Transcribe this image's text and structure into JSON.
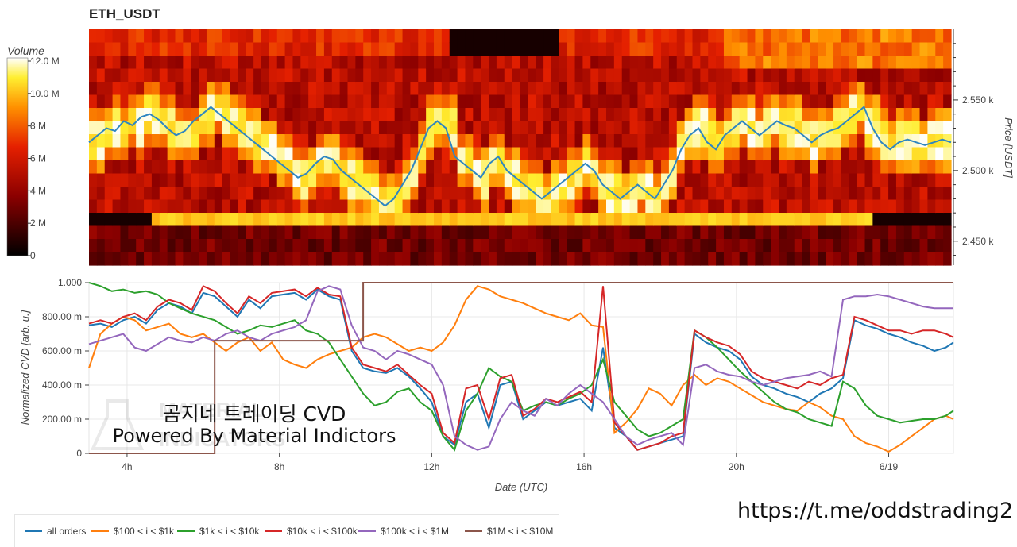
{
  "title": "ETH_USDT",
  "colorbar": {
    "label": "Volume",
    "ticks": [
      "0",
      "2 M",
      "4 M",
      "6 M",
      "8 M",
      "10.0 M",
      "12.0 M"
    ]
  },
  "heatmap": {
    "ylabel": "Price [USDT]",
    "yticks": [
      "2.450 k",
      "2.500 k",
      "2.550 k"
    ]
  },
  "overlay": {
    "line1": "곰지네 트레이딩 CVD",
    "line2": "Powered By Material Indictors"
  },
  "url": "https://t.me/oddstrading2",
  "colors": {
    "all_orders": "#1f77b4",
    "s100_1k": "#ff7f0e",
    "s1k_10k": "#2ca02c",
    "s10k_100k": "#d62728",
    "s100k_1m": "#9467bd",
    "s1m_10m": "#8c564b",
    "price_line": "#2e86c1"
  },
  "chart_data": [
    {
      "type": "heatmap",
      "title": "ETH_USDT",
      "ylabel": "Price [USDT]",
      "yticks": [
        "2.450 k",
        "2.500 k",
        "2.550 k"
      ],
      "colorbar_label": "Volume",
      "colorbar_range": [
        0,
        12000000
      ],
      "price_series": [
        2520,
        2525,
        2530,
        2528,
        2535,
        2532,
        2538,
        2540,
        2536,
        2530,
        2525,
        2528,
        2535,
        2540,
        2545,
        2540,
        2535,
        2530,
        2525,
        2520,
        2515,
        2510,
        2505,
        2500,
        2495,
        2498,
        2505,
        2510,
        2508,
        2500,
        2495,
        2490,
        2485,
        2480,
        2475,
        2480,
        2490,
        2500,
        2515,
        2530,
        2535,
        2530,
        2510,
        2505,
        2500,
        2495,
        2505,
        2510,
        2500,
        2495,
        2490,
        2485,
        2480,
        2485,
        2490,
        2495,
        2500,
        2505,
        2500,
        2490,
        2485,
        2480,
        2485,
        2490,
        2485,
        2480,
        2490,
        2500,
        2515,
        2525,
        2530,
        2520,
        2515,
        2525,
        2530,
        2535,
        2530,
        2525,
        2530,
        2535,
        2532,
        2530,
        2525,
        2520,
        2525,
        2528,
        2530,
        2535,
        2540,
        2545,
        2530,
        2520,
        2515,
        2520,
        2522,
        2520,
        2518,
        2520,
        2522,
        2520
      ]
    },
    {
      "type": "line",
      "xlabel": "Date (UTC)",
      "ylabel": "Normalized CVD [arb. u.]",
      "x_ticks": [
        "4h",
        "8h",
        "12h",
        "16h",
        "20h",
        "6/19"
      ],
      "y_ticks": [
        "0",
        "200.00 m",
        "400.00 m",
        "600.00 m",
        "800.00 m",
        "1.000"
      ],
      "ylim": [
        0,
        1
      ],
      "x": [
        3.0,
        3.3,
        3.6,
        3.9,
        4.2,
        4.5,
        4.8,
        5.1,
        5.4,
        5.7,
        6.0,
        6.3,
        6.6,
        6.9,
        7.2,
        7.5,
        7.8,
        8.1,
        8.4,
        8.7,
        9.0,
        9.3,
        9.6,
        9.9,
        10.2,
        10.5,
        10.8,
        11.1,
        11.4,
        11.7,
        12.0,
        12.3,
        12.6,
        12.9,
        13.2,
        13.5,
        13.8,
        14.1,
        14.4,
        14.7,
        15.0,
        15.3,
        15.6,
        15.9,
        16.2,
        16.5,
        16.8,
        17.1,
        17.4,
        17.7,
        18.0,
        18.3,
        18.6,
        18.9,
        19.2,
        19.5,
        19.8,
        20.1,
        20.4,
        20.7,
        21.0,
        21.3,
        21.6,
        21.9,
        22.2,
        22.5,
        22.8,
        23.1,
        23.4,
        23.7,
        24.0,
        24.3,
        24.6,
        24.9,
        25.2,
        25.5,
        25.7
      ],
      "series": [
        {
          "name": "all orders",
          "values": [
            0.75,
            0.76,
            0.74,
            0.78,
            0.8,
            0.76,
            0.84,
            0.88,
            0.86,
            0.82,
            0.94,
            0.92,
            0.86,
            0.8,
            0.9,
            0.85,
            0.92,
            0.93,
            0.94,
            0.9,
            0.96,
            0.92,
            0.9,
            0.6,
            0.5,
            0.48,
            0.47,
            0.5,
            0.45,
            0.38,
            0.3,
            0.1,
            0.05,
            0.3,
            0.35,
            0.15,
            0.4,
            0.42,
            0.2,
            0.25,
            0.3,
            0.28,
            0.3,
            0.32,
            0.25,
            0.62,
            0.15,
            0.1,
            0.02,
            0.04,
            0.06,
            0.08,
            0.1,
            0.7,
            0.65,
            0.62,
            0.6,
            0.55,
            0.45,
            0.4,
            0.38,
            0.35,
            0.33,
            0.3,
            0.35,
            0.38,
            0.44,
            0.78,
            0.75,
            0.73,
            0.7,
            0.68,
            0.65,
            0.63,
            0.6,
            0.62,
            0.65
          ]
        },
        {
          "name": "$100 < i < $1k",
          "values": [
            0.5,
            0.7,
            0.76,
            0.8,
            0.78,
            0.72,
            0.74,
            0.76,
            0.7,
            0.68,
            0.7,
            0.65,
            0.6,
            0.65,
            0.68,
            0.6,
            0.65,
            0.55,
            0.52,
            0.5,
            0.55,
            0.58,
            0.6,
            0.62,
            0.68,
            0.7,
            0.68,
            0.64,
            0.6,
            0.62,
            0.6,
            0.65,
            0.75,
            0.9,
            0.98,
            0.96,
            0.92,
            0.9,
            0.88,
            0.85,
            0.82,
            0.8,
            0.78,
            0.82,
            0.75,
            0.74,
            0.12,
            0.18,
            0.26,
            0.38,
            0.35,
            0.28,
            0.4,
            0.46,
            0.4,
            0.44,
            0.42,
            0.38,
            0.34,
            0.3,
            0.28,
            0.26,
            0.25,
            0.3,
            0.27,
            0.22,
            0.2,
            0.1,
            0.06,
            0.04,
            0.01,
            0.05,
            0.1,
            0.15,
            0.2,
            0.22,
            0.2
          ]
        },
        {
          "name": "$1k < i < $10k",
          "values": [
            1.0,
            0.98,
            0.95,
            0.96,
            0.94,
            0.95,
            0.93,
            0.88,
            0.85,
            0.82,
            0.8,
            0.78,
            0.74,
            0.7,
            0.72,
            0.75,
            0.74,
            0.76,
            0.78,
            0.72,
            0.7,
            0.65,
            0.55,
            0.45,
            0.35,
            0.28,
            0.3,
            0.36,
            0.38,
            0.3,
            0.25,
            0.1,
            0.02,
            0.25,
            0.35,
            0.5,
            0.45,
            0.42,
            0.25,
            0.28,
            0.3,
            0.28,
            0.32,
            0.35,
            0.4,
            0.55,
            0.3,
            0.22,
            0.14,
            0.1,
            0.12,
            0.16,
            0.2,
            0.72,
            0.68,
            0.62,
            0.55,
            0.48,
            0.42,
            0.36,
            0.3,
            0.26,
            0.24,
            0.2,
            0.18,
            0.16,
            0.42,
            0.38,
            0.28,
            0.22,
            0.2,
            0.18,
            0.19,
            0.2,
            0.2,
            0.22,
            0.25
          ]
        },
        {
          "name": "$10k < i < $100k",
          "values": [
            0.76,
            0.78,
            0.76,
            0.8,
            0.82,
            0.78,
            0.86,
            0.9,
            0.88,
            0.84,
            0.98,
            0.95,
            0.88,
            0.82,
            0.92,
            0.88,
            0.94,
            0.95,
            0.96,
            0.92,
            0.97,
            0.93,
            0.92,
            0.62,
            0.52,
            0.5,
            0.48,
            0.52,
            0.46,
            0.4,
            0.35,
            0.12,
            0.06,
            0.38,
            0.4,
            0.2,
            0.44,
            0.46,
            0.22,
            0.26,
            0.32,
            0.3,
            0.33,
            0.36,
            0.3,
            0.98,
            0.18,
            0.1,
            0.02,
            0.04,
            0.06,
            0.1,
            0.12,
            0.72,
            0.68,
            0.65,
            0.63,
            0.58,
            0.48,
            0.44,
            0.42,
            0.4,
            0.38,
            0.42,
            0.4,
            0.44,
            0.46,
            0.8,
            0.78,
            0.75,
            0.72,
            0.72,
            0.7,
            0.72,
            0.72,
            0.7,
            0.68
          ]
        },
        {
          "name": "$100k < i < $1M",
          "values": [
            0.64,
            0.66,
            0.68,
            0.7,
            0.62,
            0.6,
            0.64,
            0.68,
            0.66,
            0.65,
            0.68,
            0.66,
            0.7,
            0.72,
            0.68,
            0.66,
            0.7,
            0.72,
            0.74,
            0.78,
            0.95,
            0.98,
            0.96,
            0.75,
            0.62,
            0.6,
            0.55,
            0.6,
            0.58,
            0.55,
            0.52,
            0.4,
            0.1,
            0.05,
            0.02,
            0.04,
            0.2,
            0.3,
            0.25,
            0.22,
            0.32,
            0.28,
            0.35,
            0.4,
            0.35,
            0.3,
            0.2,
            0.1,
            0.05,
            0.08,
            0.1,
            0.12,
            0.05,
            0.5,
            0.52,
            0.48,
            0.46,
            0.45,
            0.42,
            0.4,
            0.42,
            0.44,
            0.45,
            0.46,
            0.48,
            0.45,
            0.9,
            0.92,
            0.92,
            0.93,
            0.92,
            0.9,
            0.88,
            0.86,
            0.85,
            0.85,
            0.85
          ]
        },
        {
          "name": "$1M < i < $10M",
          "values": [
            0.0,
            0.0,
            0.0,
            0.0,
            0.0,
            0.0,
            0.0,
            0.0,
            0.0,
            0.0,
            0.0,
            0.66,
            0.66,
            0.66,
            0.66,
            0.66,
            0.66,
            0.66,
            0.66,
            0.66,
            0.66,
            0.66,
            0.66,
            0.66,
            1.0,
            1.0,
            1.0,
            1.0,
            1.0,
            1.0,
            1.0,
            1.0,
            1.0,
            1.0,
            1.0,
            1.0,
            1.0,
            1.0,
            1.0,
            1.0,
            1.0,
            1.0,
            1.0,
            1.0,
            1.0,
            1.0,
            1.0,
            1.0,
            1.0,
            1.0,
            1.0,
            1.0,
            1.0,
            1.0,
            1.0,
            1.0,
            1.0,
            1.0,
            1.0,
            1.0,
            1.0,
            1.0,
            1.0,
            1.0,
            1.0,
            1.0,
            1.0,
            1.0,
            1.0,
            1.0,
            1.0,
            1.0,
            1.0,
            1.0,
            1.0,
            1.0,
            1.0
          ]
        }
      ]
    }
  ]
}
